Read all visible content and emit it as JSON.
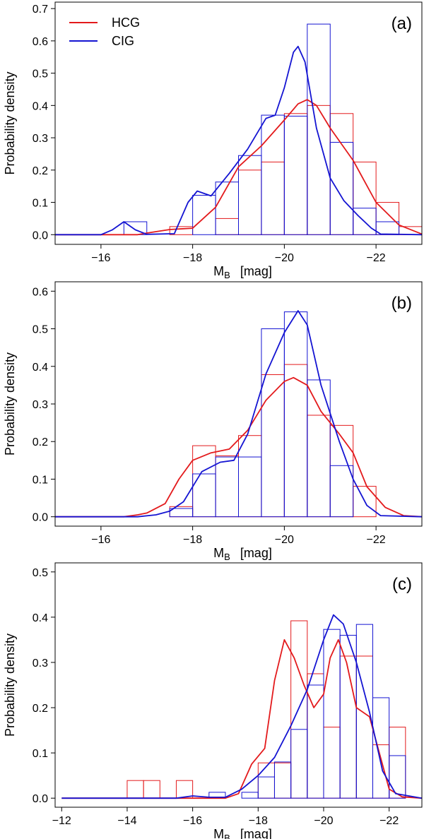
{
  "figure": {
    "ylabel": "Probability density",
    "xlabel_main": "M",
    "xlabel_sub": "B",
    "xlabel_unit": "[mag]",
    "legend": [
      {
        "name": "HCG",
        "color": "#e31a1c"
      },
      {
        "name": "CIG",
        "color": "#1414d2"
      }
    ]
  },
  "chart_data": [
    {
      "type": "bar",
      "panel_label": "(a)",
      "xlim": [
        -15,
        -23
      ],
      "ylim": [
        -0.03,
        0.72
      ],
      "xticks": [
        -16,
        -18,
        -20,
        -22
      ],
      "yticks": [
        0.0,
        0.1,
        0.2,
        0.3,
        0.4,
        0.5,
        0.6,
        0.7
      ],
      "bin_width": 0.5,
      "legend_position": "top-left",
      "series": [
        {
          "name": "HCG",
          "color": "#e31a1c",
          "bins": [
            [
              -17.5,
              0.025
            ],
            [
              -18.5,
              0.05
            ],
            [
              -19,
              0.2
            ],
            [
              -19.5,
              0.225
            ],
            [
              -20,
              0.375
            ],
            [
              -20.5,
              0.4
            ],
            [
              -21,
              0.375
            ],
            [
              -21.5,
              0.225
            ],
            [
              -22,
              0.1
            ],
            [
              -22.5,
              0.025
            ]
          ],
          "kde": [
            [
              -15,
              0
            ],
            [
              -16.8,
              0.0
            ],
            [
              -17,
              0.005
            ],
            [
              -17.5,
              0.016
            ],
            [
              -18,
              0.02
            ],
            [
              -18.5,
              0.085
            ],
            [
              -19,
              0.21
            ],
            [
              -19.5,
              0.275
            ],
            [
              -20,
              0.355
            ],
            [
              -20.3,
              0.405
            ],
            [
              -20.5,
              0.418
            ],
            [
              -20.7,
              0.4
            ],
            [
              -21,
              0.33
            ],
            [
              -21.5,
              0.23
            ],
            [
              -22,
              0.1
            ],
            [
              -22.5,
              0.03
            ],
            [
              -23,
              0.002
            ]
          ]
        },
        {
          "name": "CIG",
          "color": "#1414d2",
          "bins": [
            [
              -16.5,
              0.04
            ],
            [
              -18,
              0.122
            ],
            [
              -18.5,
              0.163
            ],
            [
              -19,
              0.245
            ],
            [
              -19.5,
              0.37
            ],
            [
              -20,
              0.367
            ],
            [
              -20.5,
              0.652
            ],
            [
              -21,
              0.286
            ],
            [
              -21.5,
              0.082
            ],
            [
              -22,
              0.04
            ]
          ],
          "kde": [
            [
              -15,
              0
            ],
            [
              -16,
              0.0
            ],
            [
              -16.25,
              0.015
            ],
            [
              -16.5,
              0.04
            ],
            [
              -16.75,
              0.015
            ],
            [
              -17,
              0.001
            ],
            [
              -17.6,
              0.003
            ],
            [
              -17.9,
              0.1
            ],
            [
              -18.1,
              0.135
            ],
            [
              -18.4,
              0.12
            ],
            [
              -18.8,
              0.19
            ],
            [
              -19.2,
              0.265
            ],
            [
              -19.6,
              0.36
            ],
            [
              -19.8,
              0.37
            ],
            [
              -20,
              0.455
            ],
            [
              -20.2,
              0.565
            ],
            [
              -20.3,
              0.583
            ],
            [
              -20.45,
              0.535
            ],
            [
              -20.7,
              0.33
            ],
            [
              -21,
              0.175
            ],
            [
              -21.3,
              0.105
            ],
            [
              -21.6,
              0.06
            ],
            [
              -21.9,
              0.02
            ],
            [
              -22.1,
              0.002
            ],
            [
              -23,
              0
            ]
          ]
        }
      ]
    },
    {
      "type": "bar",
      "panel_label": "(b)",
      "xlim": [
        -15,
        -23
      ],
      "ylim": [
        -0.025,
        0.625
      ],
      "xticks": [
        -16,
        -18,
        -20,
        -22
      ],
      "yticks": [
        0.0,
        0.1,
        0.2,
        0.3,
        0.4,
        0.5,
        0.6
      ],
      "bin_width": 0.5,
      "series": [
        {
          "name": "HCG",
          "color": "#e31a1c",
          "bins": [
            [
              -17.5,
              0.027
            ],
            [
              -18,
              0.189
            ],
            [
              -18.5,
              0.162
            ],
            [
              -19,
              0.216
            ],
            [
              -19.5,
              0.378
            ],
            [
              -20,
              0.405
            ],
            [
              -20.5,
              0.27
            ],
            [
              -21,
              0.243
            ],
            [
              -21.5,
              0.081
            ]
          ],
          "kde": [
            [
              -15,
              0
            ],
            [
              -16.5,
              0.0
            ],
            [
              -16.8,
              0.005
            ],
            [
              -17,
              0.01
            ],
            [
              -17.4,
              0.035
            ],
            [
              -17.7,
              0.1
            ],
            [
              -18,
              0.15
            ],
            [
              -18.4,
              0.17
            ],
            [
              -18.8,
              0.18
            ],
            [
              -19.2,
              0.23
            ],
            [
              -19.6,
              0.31
            ],
            [
              -20,
              0.36
            ],
            [
              -20.2,
              0.37
            ],
            [
              -20.5,
              0.35
            ],
            [
              -20.8,
              0.28
            ],
            [
              -21.2,
              0.22
            ],
            [
              -21.5,
              0.17
            ],
            [
              -21.8,
              0.08
            ],
            [
              -22.2,
              0.025
            ],
            [
              -22.6,
              0.003
            ],
            [
              -23,
              0
            ]
          ]
        },
        {
          "name": "CIG",
          "color": "#1414d2",
          "bins": [
            [
              -17.5,
              0.022
            ],
            [
              -18,
              0.114
            ],
            [
              -18.5,
              0.159
            ],
            [
              -19,
              0.159
            ],
            [
              -19.5,
              0.5
            ],
            [
              -20,
              0.545
            ],
            [
              -20.5,
              0.364
            ],
            [
              -21,
              0.136
            ]
          ],
          "kde": [
            [
              -15,
              0
            ],
            [
              -16.8,
              0.0
            ],
            [
              -17.2,
              0.005
            ],
            [
              -17.5,
              0.015
            ],
            [
              -17.8,
              0.04
            ],
            [
              -18.2,
              0.12
            ],
            [
              -18.6,
              0.145
            ],
            [
              -18.9,
              0.15
            ],
            [
              -19.2,
              0.22
            ],
            [
              -19.6,
              0.38
            ],
            [
              -20,
              0.49
            ],
            [
              -20.3,
              0.548
            ],
            [
              -20.5,
              0.51
            ],
            [
              -20.8,
              0.35
            ],
            [
              -21.2,
              0.2
            ],
            [
              -21.5,
              0.1
            ],
            [
              -21.8,
              0.03
            ],
            [
              -22.1,
              0.003
            ],
            [
              -23,
              0
            ]
          ]
        }
      ]
    },
    {
      "type": "bar",
      "panel_label": "(c)",
      "xlim": [
        -11.8,
        -23
      ],
      "ylim": [
        -0.02,
        0.52
      ],
      "xticks": [
        -12,
        -14,
        -16,
        -18,
        -20,
        -22
      ],
      "yticks": [
        0.0,
        0.1,
        0.2,
        0.3,
        0.4,
        0.5
      ],
      "bin_width": 0.5,
      "series": [
        {
          "name": "HCG",
          "color": "#e31a1c",
          "bins": [
            [
              -14,
              0.039
            ],
            [
              -14.5,
              0.039
            ],
            [
              -15.5,
              0.039
            ],
            [
              -18,
              0.078
            ],
            [
              -18.5,
              0.078
            ],
            [
              -19,
              0.392
            ],
            [
              -19.5,
              0.275
            ],
            [
              -20,
              0.157
            ],
            [
              -20.5,
              0.314
            ],
            [
              -21,
              0.314
            ],
            [
              -21.5,
              0.118
            ],
            [
              -22,
              0.157
            ]
          ],
          "kde": [
            [
              -12,
              0
            ],
            [
              -17,
              0.0
            ],
            [
              -17.4,
              0.01
            ],
            [
              -17.8,
              0.075
            ],
            [
              -18.2,
              0.11
            ],
            [
              -18.5,
              0.26
            ],
            [
              -18.8,
              0.35
            ],
            [
              -19.1,
              0.31
            ],
            [
              -19.4,
              0.25
            ],
            [
              -19.7,
              0.2
            ],
            [
              -20,
              0.23
            ],
            [
              -20.2,
              0.31
            ],
            [
              -20.45,
              0.35
            ],
            [
              -20.7,
              0.3
            ],
            [
              -21,
              0.2
            ],
            [
              -21.4,
              0.18
            ],
            [
              -21.7,
              0.1
            ],
            [
              -22,
              0.02
            ],
            [
              -22.4,
              0.003
            ],
            [
              -23,
              0
            ]
          ]
        },
        {
          "name": "CIG",
          "color": "#1414d2",
          "bins": [
            [
              -16.5,
              0.013
            ],
            [
              -17.5,
              0.013
            ],
            [
              -18,
              0.047
            ],
            [
              -18.5,
              0.08
            ],
            [
              -19,
              0.152
            ],
            [
              -19.5,
              0.25
            ],
            [
              -20,
              0.373
            ],
            [
              -20.5,
              0.36
            ],
            [
              -21,
              0.384
            ],
            [
              -21.5,
              0.222
            ],
            [
              -22,
              0.094
            ]
          ],
          "kde": [
            [
              -12,
              0
            ],
            [
              -15.5,
              0.0
            ],
            [
              -16,
              0.005
            ],
            [
              -16.5,
              0.002
            ],
            [
              -17,
              0.002
            ],
            [
              -17.5,
              0.02
            ],
            [
              -18,
              0.05
            ],
            [
              -18.5,
              0.09
            ],
            [
              -19,
              0.16
            ],
            [
              -19.5,
              0.24
            ],
            [
              -20,
              0.35
            ],
            [
              -20.3,
              0.405
            ],
            [
              -20.6,
              0.385
            ],
            [
              -21,
              0.3
            ],
            [
              -21.4,
              0.19
            ],
            [
              -21.8,
              0.06
            ],
            [
              -22.2,
              0.01
            ],
            [
              -23,
              0
            ]
          ]
        }
      ]
    }
  ]
}
